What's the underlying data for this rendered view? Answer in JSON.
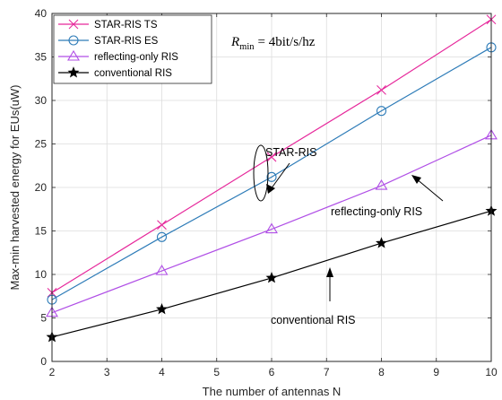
{
  "chart_data": {
    "type": "line",
    "xlabel": "The number of antennas N",
    "ylabel": "Max-min harvested energy for EUs(uW)",
    "xlim": [
      2,
      10
    ],
    "ylim": [
      0,
      40
    ],
    "xticks": [
      2,
      3,
      4,
      5,
      6,
      7,
      8,
      9,
      10
    ],
    "yticks": [
      0,
      5,
      10,
      15,
      20,
      25,
      30,
      35,
      40
    ],
    "x": [
      2,
      4,
      6,
      8,
      10
    ],
    "grid": true,
    "legend_position": "top-left",
    "series": [
      {
        "name": "STAR-RIS TS",
        "color": "#e6289b",
        "marker": "x",
        "values": [
          7.9,
          15.7,
          23.5,
          31.2,
          39.3
        ]
      },
      {
        "name": "STAR-RIS ES",
        "color": "#2e7cb8",
        "marker": "circle",
        "values": [
          7.1,
          14.3,
          21.2,
          28.8,
          36.1
        ]
      },
      {
        "name": "reflecting-only RIS",
        "color": "#b04fe6",
        "marker": "triangle",
        "values": [
          5.6,
          10.4,
          15.2,
          20.2,
          26.0
        ]
      },
      {
        "name": "conventional RIS",
        "color": "#000000",
        "marker": "star",
        "values": [
          2.8,
          6.0,
          9.6,
          13.6,
          17.3
        ]
      }
    ],
    "annotations": {
      "star_ris": "STAR-RIS",
      "reflecting_only": "reflecting-only RIS",
      "conventional": "conventional RIS",
      "rmin_symbol": "R",
      "rmin_sub": "min",
      "rmin_value": "= 4bit/s/hz"
    }
  }
}
